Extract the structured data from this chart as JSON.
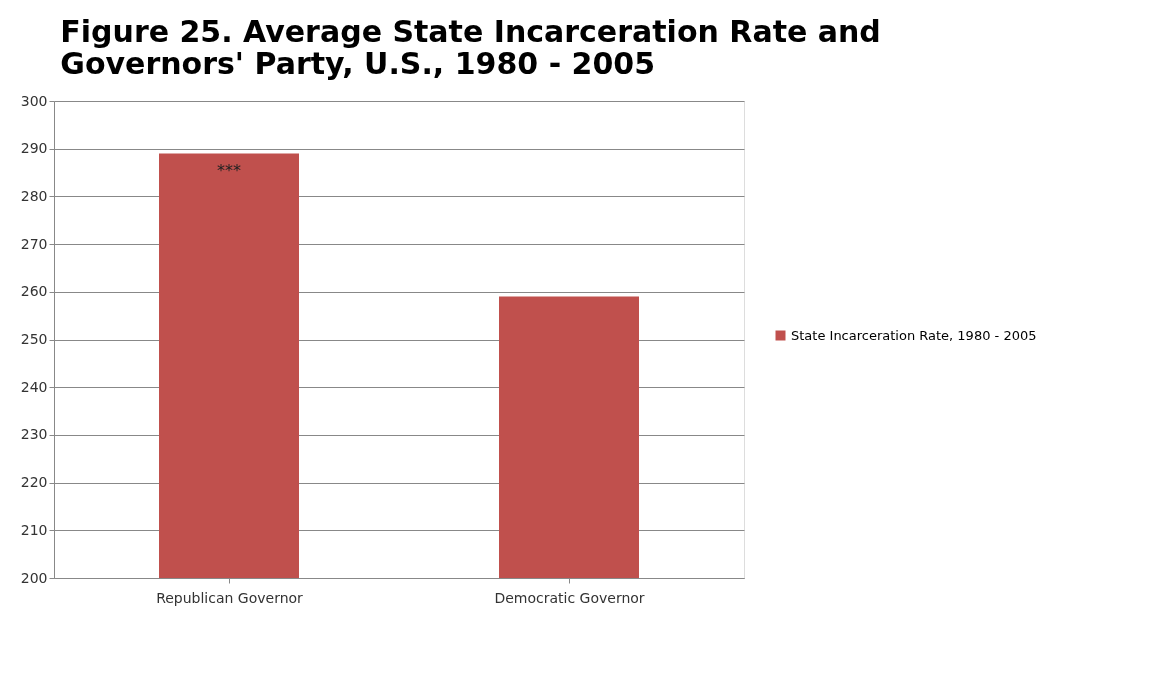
{
  "chart_data": {
    "type": "bar",
    "title": "Figure 25. Average State Incarceration Rate and Governors' Party, U.S., 1980 - 2005",
    "categories": [
      "Republican Governor",
      "Democratic Governor"
    ],
    "series": [
      {
        "name": "State Incarceration Rate, 1980 - 2005",
        "color": "#c0504d",
        "values": [
          289,
          259
        ]
      }
    ],
    "ylim": [
      200,
      300
    ],
    "yticks": [
      200,
      210,
      220,
      230,
      240,
      250,
      260,
      270,
      280,
      290,
      300
    ],
    "grid": "y",
    "legend": "right",
    "annotations": [
      "***"
    ]
  }
}
